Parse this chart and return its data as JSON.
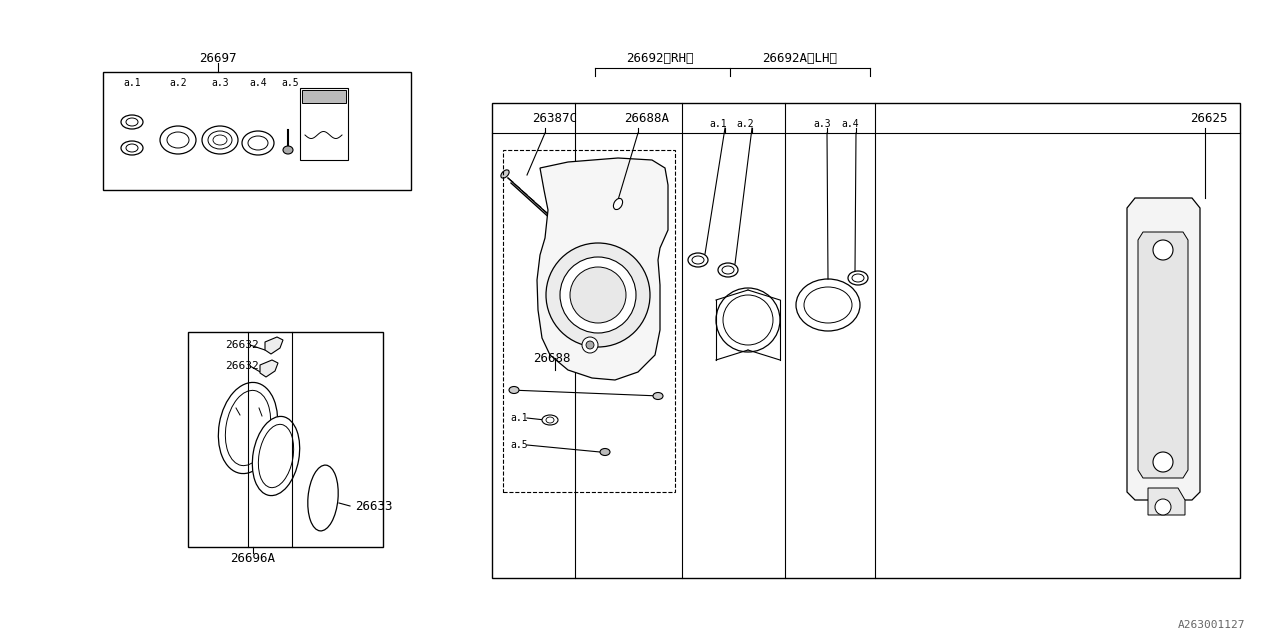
{
  "bg_color": "#ffffff",
  "line_color": "#000000",
  "font_color": "#000000",
  "watermark": "A263001127",
  "part_26697": "26697",
  "part_26692_rh": "26692〈RH〉",
  "part_26692a_lh": "26692A〈LH〉",
  "part_26387c": "26387C",
  "part_26688a": "26688A",
  "part_26688": "26688",
  "part_26625": "26625",
  "part_26632": "26632",
  "part_26633": "26633",
  "part_26696a": "26696A",
  "sub_labels_kit": [
    "a.1",
    "a.2",
    "a.3",
    "a.4",
    "a.5"
  ],
  "sub_labels_main": [
    "a.1",
    "a.2",
    "a.3",
    "a.4"
  ]
}
